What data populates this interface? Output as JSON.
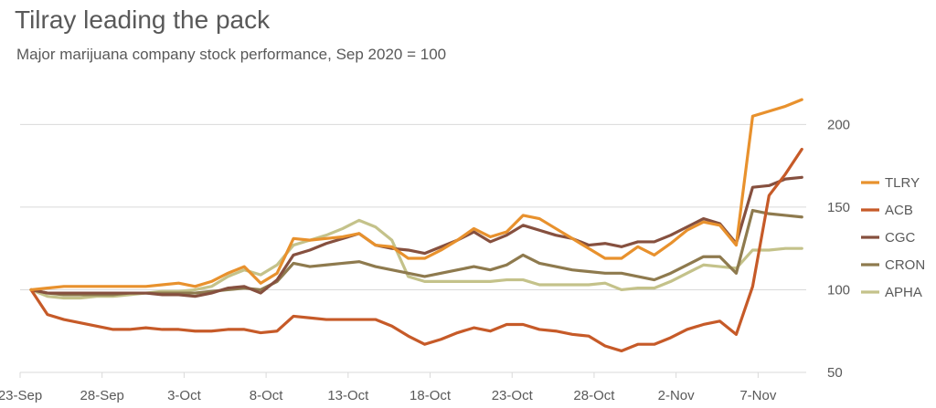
{
  "title": "Tilray leading the pack",
  "subtitle": "Major marijuana company stock performance, Sep 2020 = 100",
  "chart_data": {
    "type": "line",
    "title": "Tilray leading the pack",
    "subtitle": "Major marijuana company stock performance, Sep 2020 = 100",
    "xlabel": "",
    "ylabel": "",
    "x_ticks": [
      "23-Sep",
      "28-Sep",
      "3-Oct",
      "8-Oct",
      "13-Oct",
      "18-Oct",
      "23-Oct",
      "28-Oct",
      "2-Nov",
      "7-Nov"
    ],
    "x_tick_days": [
      0,
      5,
      10,
      15,
      20,
      25,
      30,
      35,
      40,
      45
    ],
    "xlim": [
      0,
      47.6
    ],
    "ylim": [
      50,
      230
    ],
    "y_ticks": [
      50,
      100,
      150,
      200
    ],
    "y_axis_position": "right",
    "grid": "horizontal",
    "legend_position": "right",
    "x": [
      0,
      1,
      2,
      3,
      4,
      5,
      6,
      7,
      8,
      9,
      10,
      11,
      12,
      13,
      14,
      15,
      16,
      17,
      18,
      19,
      20,
      21,
      22,
      23,
      24,
      25,
      26,
      27,
      28,
      29,
      30,
      31,
      32,
      33,
      34,
      35,
      36,
      37,
      38,
      39,
      40,
      41,
      42,
      43,
      44,
      45,
      46,
      47
    ],
    "series": [
      {
        "name": "TLRY",
        "color": "#E8912D",
        "values": [
          100,
          101,
          102,
          102,
          102,
          102,
          102,
          102,
          103,
          104,
          102,
          105,
          110,
          114,
          104,
          110,
          131,
          130,
          131,
          132,
          134,
          127,
          126,
          119,
          119,
          124,
          130,
          137,
          132,
          135,
          145,
          143,
          137,
          131,
          125,
          119,
          119,
          126,
          121,
          128,
          136,
          141,
          139,
          127,
          205,
          208,
          211,
          215
        ]
      },
      {
        "name": "ACB",
        "color": "#C65A28",
        "values": [
          100,
          85,
          82,
          80,
          78,
          76,
          76,
          77,
          76,
          76,
          75,
          75,
          76,
          76,
          74,
          75,
          84,
          83,
          82,
          82,
          82,
          82,
          78,
          72,
          67,
          70,
          74,
          77,
          75,
          79,
          79,
          76,
          75,
          73,
          72,
          66,
          63,
          67,
          67,
          71,
          76,
          79,
          81,
          73,
          102,
          157,
          170,
          185
        ]
      },
      {
        "name": "CGC",
        "color": "#86503F",
        "values": [
          100,
          98,
          98,
          98,
          98,
          98,
          98,
          98,
          97,
          97,
          96,
          98,
          101,
          102,
          98,
          106,
          121,
          124,
          128,
          131,
          134,
          127,
          125,
          124,
          122,
          126,
          130,
          135,
          129,
          133,
          139,
          136,
          133,
          131,
          127,
          128,
          126,
          129,
          129,
          133,
          138,
          143,
          140,
          128,
          162,
          163,
          167,
          168
        ]
      },
      {
        "name": "CRON",
        "color": "#8E7A4E",
        "values": [
          100,
          98,
          97,
          97,
          97,
          97,
          98,
          98,
          98,
          98,
          98,
          99,
          100,
          101,
          100,
          105,
          116,
          114,
          115,
          116,
          117,
          114,
          112,
          110,
          108,
          110,
          112,
          114,
          112,
          115,
          121,
          116,
          114,
          112,
          111,
          110,
          110,
          108,
          106,
          110,
          115,
          120,
          120,
          110,
          148,
          146,
          145,
          144
        ]
      },
      {
        "name": "APHA",
        "color": "#C4C28A",
        "values": [
          100,
          96,
          95,
          95,
          96,
          96,
          97,
          98,
          99,
          99,
          100,
          102,
          108,
          112,
          109,
          115,
          127,
          130,
          133,
          137,
          142,
          138,
          130,
          108,
          105,
          105,
          105,
          105,
          105,
          106,
          106,
          103,
          103,
          103,
          103,
          104,
          100,
          101,
          101,
          105,
          110,
          115,
          114,
          113,
          124,
          124,
          125,
          125
        ]
      }
    ]
  }
}
